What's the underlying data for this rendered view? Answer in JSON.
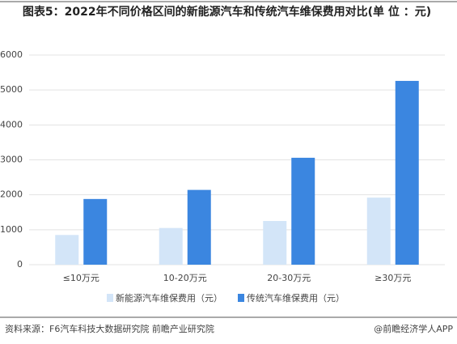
{
  "chart_data": {
    "type": "bar",
    "title": "图表5：2022年不同价格区间的新能源汽车和传统汽车维保费用对比(单 位 ：元)",
    "categories": [
      "≤10万元",
      "10-20万元",
      "20-30万元",
      "≥30万元"
    ],
    "series": [
      {
        "name": "新能源汽车维保费用（元）",
        "color": "#d3e5f8",
        "values": [
          850,
          1050,
          1250,
          1920
        ]
      },
      {
        "name": "传统汽车维保费用（元）",
        "color": "#3b86e0",
        "values": [
          1880,
          2140,
          3060,
          5260
        ]
      }
    ],
    "ylim": [
      0,
      6000
    ],
    "yticks": [
      0,
      1000,
      2000,
      3000,
      4000,
      5000,
      6000
    ],
    "grid": true,
    "legend": "bottom",
    "source": "资料来源：F6汽车科技大数据研究院 前瞻产业研究院",
    "credit": "@前瞻经济学人APP"
  }
}
